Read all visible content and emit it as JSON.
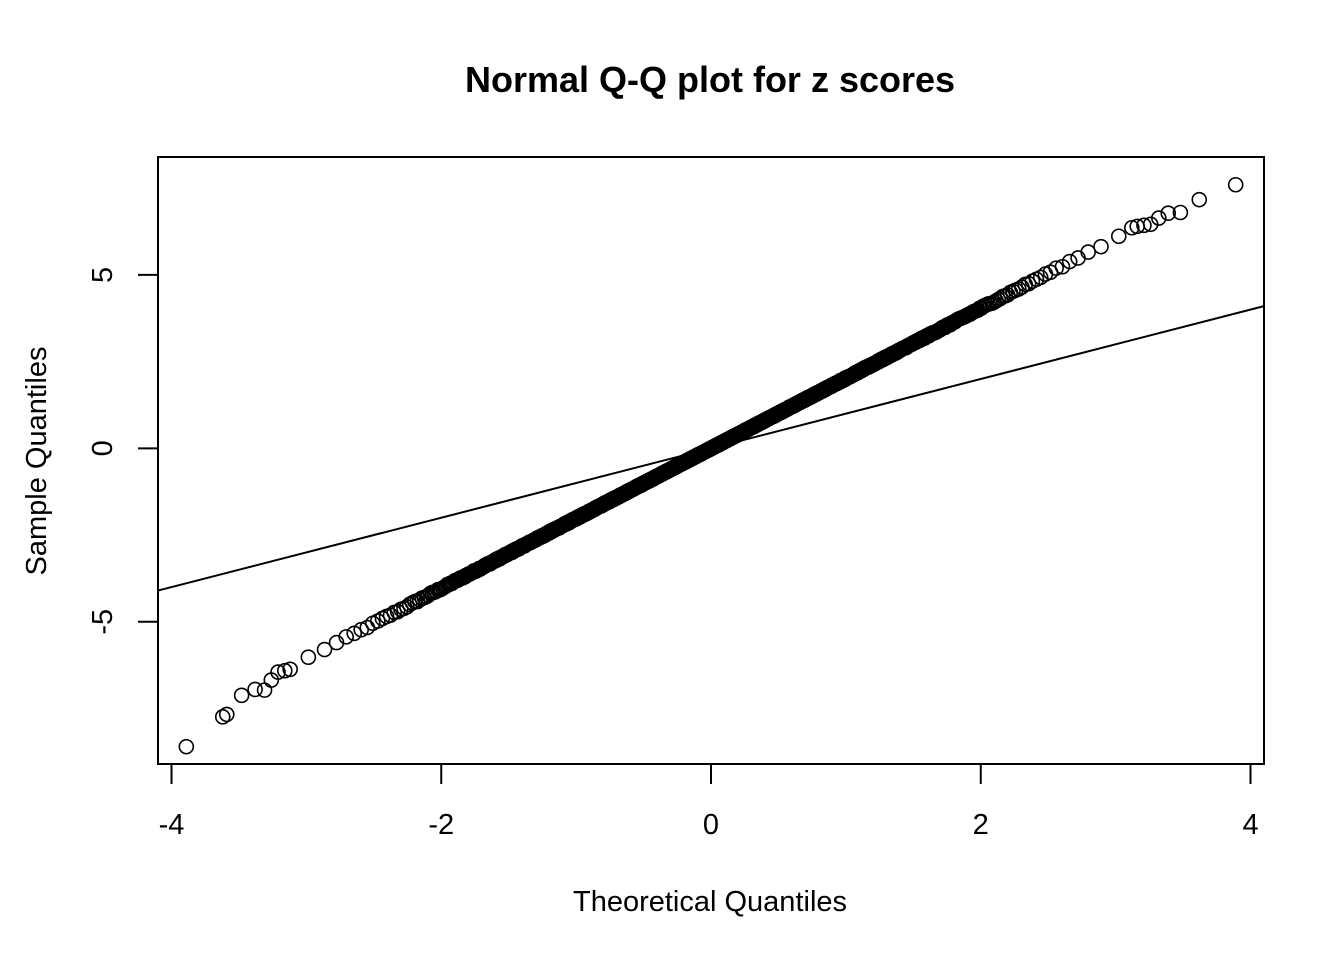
{
  "chart_data": {
    "type": "scatter",
    "title": "Normal Q-Q plot for z scores",
    "xlabel": "Theoretical Quantiles",
    "ylabel": "Sample Quantiles",
    "xlim": [
      -4.1,
      4.1
    ],
    "ylim": [
      -9.1,
      8.4
    ],
    "x_ticks": [
      -4,
      -2,
      0,
      2,
      4
    ],
    "x_tick_labels": [
      "-4",
      "-2",
      "0",
      "2",
      "4"
    ],
    "y_ticks": [
      -5,
      0,
      5
    ],
    "y_tick_labels": [
      "-5",
      "0",
      "5"
    ],
    "grid": false,
    "legend": "none",
    "reference_line": {
      "slope": 1.0,
      "intercept": 0.0
    },
    "sample_count": 6000,
    "quantile_slope": 2.02,
    "outlier_points": [
      {
        "x": 3.89,
        "y": 7.6
      },
      {
        "x": 3.62,
        "y": 7.17
      },
      {
        "x": 3.48,
        "y": 6.8
      },
      {
        "x": 3.39,
        "y": 6.78
      },
      {
        "x": 3.32,
        "y": 6.64
      },
      {
        "x": 3.26,
        "y": 6.46
      },
      {
        "x": 3.21,
        "y": 6.43
      },
      {
        "x": 3.16,
        "y": 6.4
      },
      {
        "x": 3.12,
        "y": 6.36
      },
      {
        "x": -3.12,
        "y": -6.37
      },
      {
        "x": -3.16,
        "y": -6.41
      },
      {
        "x": -3.21,
        "y": -6.45
      },
      {
        "x": -3.26,
        "y": -6.68
      },
      {
        "x": -3.31,
        "y": -6.97
      },
      {
        "x": -3.38,
        "y": -6.95
      },
      {
        "x": -3.48,
        "y": -7.12
      },
      {
        "x": -3.59,
        "y": -7.67
      },
      {
        "x": -3.62,
        "y": -7.74
      },
      {
        "x": -3.89,
        "y": -8.6
      }
    ]
  }
}
